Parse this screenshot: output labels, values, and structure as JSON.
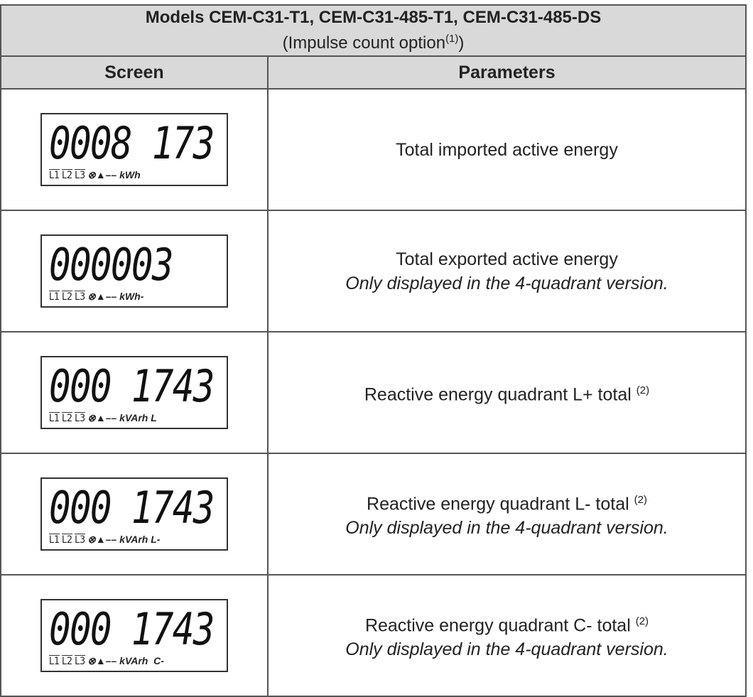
{
  "table": {
    "title": "Models CEM-C31-T1, CEM-C31-485-T1, CEM-C31-485-DS",
    "subtitle": "(Impulse count option",
    "subtitle_note": "(1)",
    "subtitle_end": ")",
    "headers": [
      "Screen",
      "Parameters"
    ],
    "lcd_phases": [
      "L1",
      "L2",
      "L3"
    ],
    "rows": [
      {
        "digits": "0008 173",
        "unit": "kWh",
        "text": "Total imported active energy"
      },
      {
        "digits": "000003",
        "unit": "kWh-",
        "text": "Total exported active energy",
        "note_line": "Only displayed in the 4-quadrant version."
      },
      {
        "digits": "000 1743",
        "unit": "kVArh L",
        "text": "Reactive energy quadrant L+ total ",
        "sup": "(2)"
      },
      {
        "digits": "000 1743",
        "unit": "kVArh L-",
        "text": "Reactive energy quadrant L- total ",
        "sup": "(2)",
        "note_line": "Only displayed in the 4-quadrant version."
      },
      {
        "digits": "000 1743",
        "unit": "kVArh  C-",
        "text": "Reactive energy quadrant C- total ",
        "sup": "(2)",
        "note_line": "Only displayed in the 4-quadrant version."
      }
    ]
  }
}
